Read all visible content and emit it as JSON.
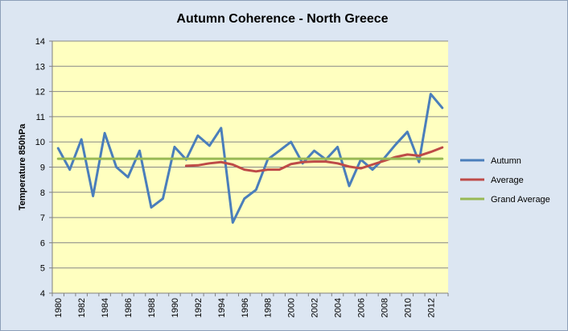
{
  "chart_data": {
    "type": "line",
    "title": "Autumn Coherence - North Greece",
    "xlabel": "",
    "ylabel": "Temperature 850hPa",
    "ylim": [
      4,
      14
    ],
    "yticks": [
      4,
      5,
      6,
      7,
      8,
      9,
      10,
      11,
      12,
      13,
      14
    ],
    "xticks": [
      "1980",
      "1982",
      "1984",
      "1986",
      "1988",
      "1990",
      "1992",
      "1994",
      "1996",
      "1998",
      "2000",
      "2002",
      "2004",
      "2006",
      "2008",
      "2010",
      "2012"
    ],
    "x": [
      1980,
      1981,
      1982,
      1983,
      1984,
      1985,
      1986,
      1987,
      1988,
      1989,
      1990,
      1991,
      1992,
      1993,
      1994,
      1995,
      1996,
      1997,
      1998,
      1999,
      2000,
      2001,
      2002,
      2003,
      2004,
      2005,
      2006,
      2007,
      2008,
      2009,
      2010,
      2011,
      2012,
      2013
    ],
    "grid": "horizontal",
    "legend_position": "right",
    "series": [
      {
        "name": "Autumn",
        "color": "#4a7ebb",
        "values": [
          9.75,
          8.9,
          10.1,
          7.85,
          10.35,
          9.0,
          8.6,
          9.65,
          7.4,
          7.75,
          9.8,
          9.3,
          10.25,
          9.85,
          10.55,
          6.8,
          7.75,
          8.1,
          9.3,
          9.65,
          10.0,
          9.15,
          9.65,
          9.3,
          9.8,
          8.25,
          9.3,
          8.9,
          9.35,
          9.9,
          10.4,
          9.2,
          11.9,
          11.35
        ]
      },
      {
        "name": "Average",
        "color": "#be4b48",
        "values": [
          null,
          null,
          null,
          null,
          null,
          null,
          null,
          null,
          null,
          null,
          null,
          9.05,
          9.07,
          9.15,
          9.2,
          9.1,
          8.9,
          8.83,
          8.9,
          8.9,
          9.12,
          9.2,
          9.22,
          9.22,
          9.15,
          9.02,
          8.95,
          9.1,
          9.25,
          9.4,
          9.5,
          9.45,
          9.6,
          9.78
        ]
      },
      {
        "name": "Grand Average",
        "color": "#98b954",
        "values": [
          9.33,
          9.33,
          9.33,
          9.33,
          9.33,
          9.33,
          9.33,
          9.33,
          9.33,
          9.33,
          9.33,
          9.33,
          9.33,
          9.33,
          9.33,
          9.33,
          9.33,
          9.33,
          9.33,
          9.33,
          9.33,
          9.33,
          9.33,
          9.33,
          9.33,
          9.33,
          9.33,
          9.33,
          9.33,
          9.33,
          9.33,
          9.33,
          9.33,
          9.33
        ]
      }
    ],
    "colors": {
      "plot_background": "#ffffc0",
      "chart_background": "#dce6f2",
      "gridline": "#888888"
    }
  }
}
